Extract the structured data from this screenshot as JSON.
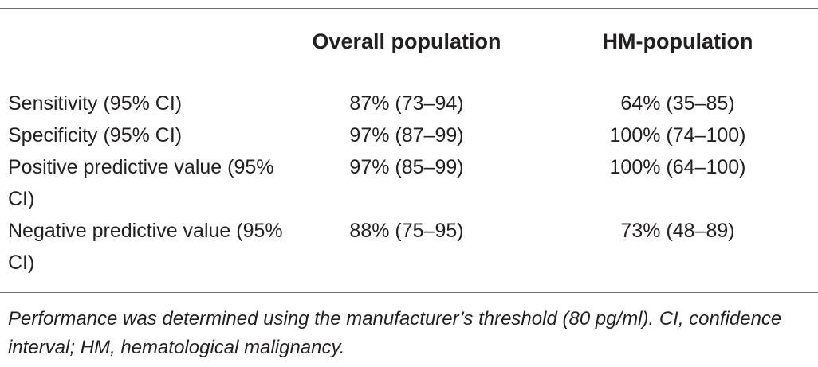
{
  "table": {
    "headers": [
      "",
      "Overall population",
      "HM-population"
    ],
    "rows": [
      {
        "label": "Sensitivity (95% CI)",
        "overall": "87% (73–94)",
        "hm": "64% (35–85)"
      },
      {
        "label": "Specificity (95% CI)",
        "overall": "97% (87–99)",
        "hm": "100% (74–100)"
      },
      {
        "label": "Positive predictive value (95% CI)",
        "overall": "97% (85–99)",
        "hm": "100% (64–100)"
      },
      {
        "label": "Negative predictive value (95% CI)",
        "overall": "88% (75–95)",
        "hm": "73% (48–89)"
      }
    ],
    "footnote": "Performance was determined using the manufacturer’s threshold (80 pg/ml). CI, confidence interval; HM, hematological malignancy."
  }
}
